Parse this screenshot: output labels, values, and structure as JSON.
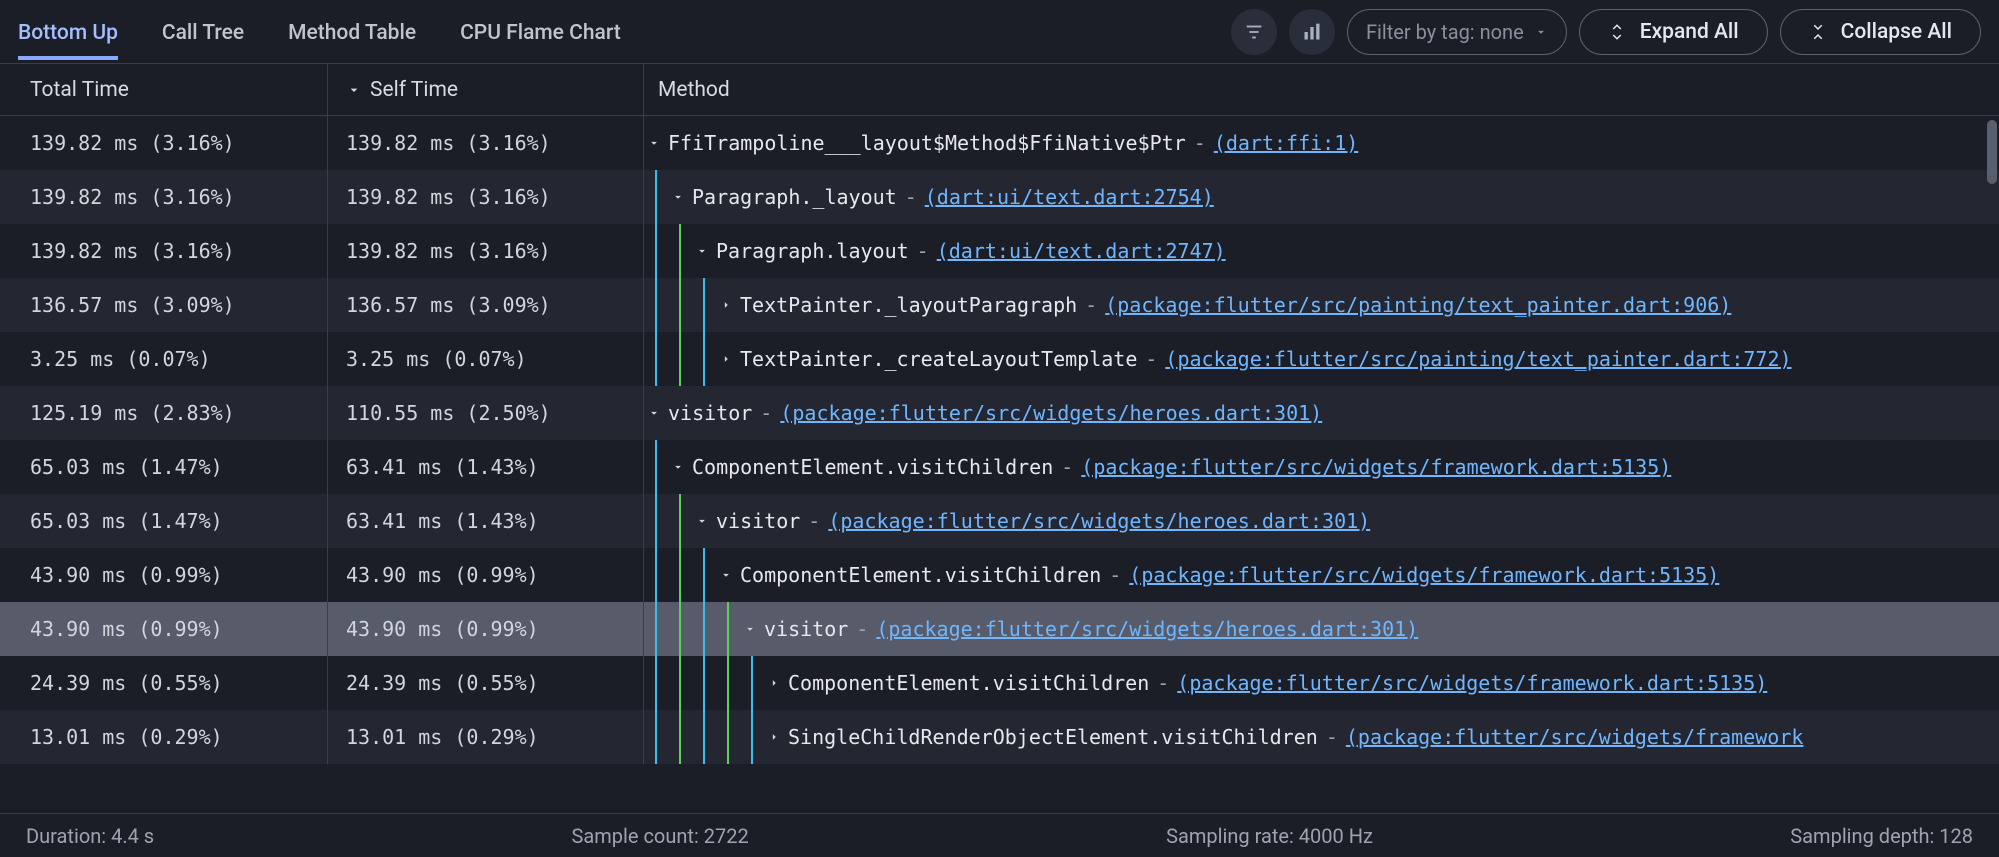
{
  "tabs": [
    {
      "label": "Bottom Up",
      "active": true
    },
    {
      "label": "Call Tree",
      "active": false
    },
    {
      "label": "Method Table",
      "active": false
    },
    {
      "label": "CPU Flame Chart",
      "active": false
    }
  ],
  "toolbar": {
    "filter_label": "Filter by tag: none",
    "expand_all": "Expand All",
    "collapse_all": "Collapse All"
  },
  "columns": {
    "total": "Total Time",
    "self": "Self Time",
    "method": "Method"
  },
  "colors": {
    "link": "#6fb6ff",
    "guide_blue": "#3dbcf0",
    "guide_green": "#57d35c",
    "row_a": "#1c1e27",
    "row_b": "#242732",
    "row_selected": "#585c6a"
  },
  "rows": [
    {
      "total": "139.82 ms (3.16%)",
      "self": "139.82 ms (3.16%)",
      "indent": 0,
      "guides": [],
      "expander": "down",
      "method": "FfiTrampoline___layout$Method$FfiNative$Ptr",
      "src": "(dart:ffi:1)",
      "stripe": "a",
      "sel": false
    },
    {
      "total": "139.82 ms (3.16%)",
      "self": "139.82 ms (3.16%)",
      "indent": 1,
      "guides": [
        "blue"
      ],
      "expander": "down",
      "method": "Paragraph._layout",
      "src": "(dart:ui/text.dart:2754)",
      "stripe": "b",
      "sel": false
    },
    {
      "total": "139.82 ms (3.16%)",
      "self": "139.82 ms (3.16%)",
      "indent": 2,
      "guides": [
        "blue",
        "green"
      ],
      "expander": "down",
      "method": "Paragraph.layout",
      "src": "(dart:ui/text.dart:2747)",
      "stripe": "a",
      "sel": false
    },
    {
      "total": "136.57 ms (3.09%)",
      "self": "136.57 ms (3.09%)",
      "indent": 3,
      "guides": [
        "blue",
        "green",
        "blue"
      ],
      "expander": "right",
      "method": "TextPainter._layoutParagraph",
      "src": "(package:flutter/src/painting/text_painter.dart:906)",
      "stripe": "b",
      "sel": false
    },
    {
      "total": "3.25 ms (0.07%)",
      "self": "3.25 ms (0.07%)",
      "indent": 3,
      "guides": [
        "blue",
        "green",
        "blue"
      ],
      "expander": "right",
      "method": "TextPainter._createLayoutTemplate",
      "src": "(package:flutter/src/painting/text_painter.dart:772)",
      "stripe": "a",
      "sel": false
    },
    {
      "total": "125.19 ms (2.83%)",
      "self": "110.55 ms (2.50%)",
      "indent": 0,
      "guides": [],
      "expander": "down",
      "method": "visitor",
      "src": "(package:flutter/src/widgets/heroes.dart:301)",
      "stripe": "b",
      "sel": false
    },
    {
      "total": "65.03 ms (1.47%)",
      "self": "63.41 ms (1.43%)",
      "indent": 1,
      "guides": [
        "blue"
      ],
      "expander": "down",
      "method": "ComponentElement.visitChildren",
      "src": "(package:flutter/src/widgets/framework.dart:5135)",
      "stripe": "a",
      "sel": false
    },
    {
      "total": "65.03 ms (1.47%)",
      "self": "63.41 ms (1.43%)",
      "indent": 2,
      "guides": [
        "blue",
        "green"
      ],
      "expander": "down",
      "method": "visitor",
      "src": "(package:flutter/src/widgets/heroes.dart:301)",
      "stripe": "b",
      "sel": false
    },
    {
      "total": "43.90 ms (0.99%)",
      "self": "43.90 ms (0.99%)",
      "indent": 3,
      "guides": [
        "blue",
        "green",
        "blue"
      ],
      "expander": "down",
      "method": "ComponentElement.visitChildren",
      "src": "(package:flutter/src/widgets/framework.dart:5135)",
      "stripe": "a",
      "sel": false
    },
    {
      "total": "43.90 ms (0.99%)",
      "self": "43.90 ms (0.99%)",
      "indent": 4,
      "guides": [
        "blue",
        "green",
        "blue",
        "green"
      ],
      "expander": "down",
      "method": "visitor",
      "src": "(package:flutter/src/widgets/heroes.dart:301)",
      "stripe": "b",
      "sel": true
    },
    {
      "total": "24.39 ms (0.55%)",
      "self": "24.39 ms (0.55%)",
      "indent": 5,
      "guides": [
        "blue",
        "green",
        "blue",
        "green",
        "blue"
      ],
      "expander": "right",
      "method": "ComponentElement.visitChildren",
      "src": "(package:flutter/src/widgets/framework.dart:5135)",
      "stripe": "a",
      "sel": false
    },
    {
      "total": "13.01 ms (0.29%)",
      "self": "13.01 ms (0.29%)",
      "indent": 5,
      "guides": [
        "blue",
        "green",
        "blue",
        "green",
        "blue"
      ],
      "expander": "right",
      "method": "SingleChildRenderObjectElement.visitChildren",
      "src": "(package:flutter/src/widgets/framework",
      "stripe": "b",
      "sel": false
    }
  ],
  "footer": {
    "duration": "Duration: 4.4 s",
    "sample_count": "Sample count: 2722",
    "sampling_rate": "Sampling rate: 4000 Hz",
    "sampling_depth": "Sampling depth: 128"
  }
}
